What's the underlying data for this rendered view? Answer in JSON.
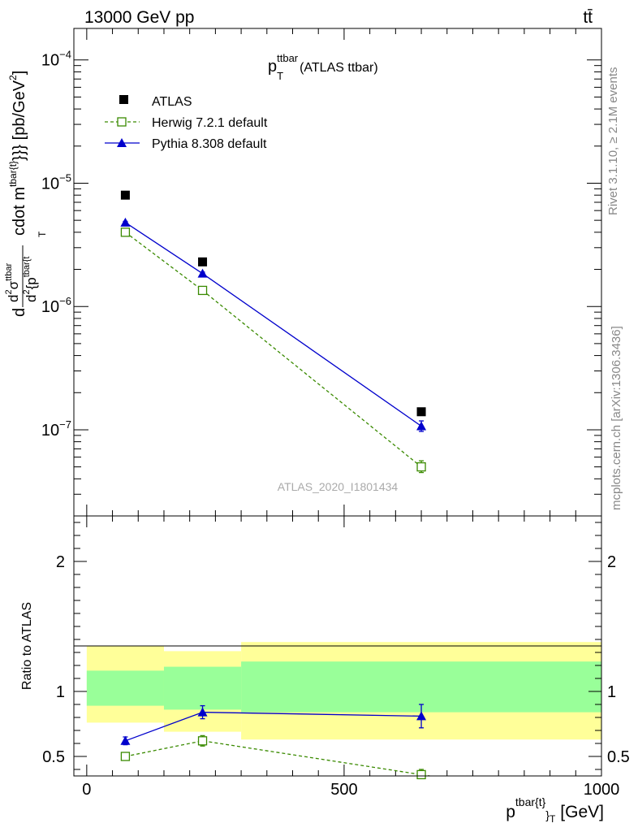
{
  "header": {
    "left_label": "13000 GeV pp",
    "right_label": "tt̄"
  },
  "side_labels": {
    "rivet": "Rivet 3.1.10, ≥ 2.1M events",
    "mcplots": "mcplots.cern.ch [arXiv:1306.3436]"
  },
  "chart_data": [
    {
      "type": "scatter",
      "title_main": "p",
      "title_sup": "ttbar",
      "title_sub": "T",
      "title_rest": "(ATLAS ttbar)",
      "watermark": "ATLAS_2020_I1801434",
      "ylabel": "d d²σ^ttbar/ d² {p_T^tbar{t}}} cdot m^tbar{t}}} [pb/GeV²]",
      "ylabel_parts": {
        "d": "d",
        "d2sigma": "d",
        "sup2": "2",
        "sigma": "σ",
        "sigma_sup": "ttbar",
        "den_d": "d",
        "den_sup": "2",
        "den_p": "{p",
        "den_sup2": "tbar{t",
        "den_sub": "T",
        "cdot": "cdot m",
        "m_sup": "tbar{t}",
        "tail": "}}} [pb/GeV",
        "tail_sup": "2",
        "tail_end": "]"
      },
      "yscale": "log",
      "ylim": [
        2e-08,
        0.00018
      ],
      "xlim": [
        -25,
        1000
      ],
      "y_ticks": [
        {
          "value": 1e-07,
          "base": "10",
          "exp": "−7"
        },
        {
          "value": 1e-06,
          "base": "10",
          "exp": "−6"
        },
        {
          "value": 1e-05,
          "base": "10",
          "exp": "−5"
        },
        {
          "value": 0.0001,
          "base": "10",
          "exp": "−4"
        }
      ],
      "legend_position": "top-left",
      "series": [
        {
          "name": "ATLAS",
          "marker": "filled-square",
          "color": "#000000",
          "x": [
            75,
            225,
            650
          ],
          "y": [
            8e-06,
            2.3e-06,
            1.4e-07
          ]
        },
        {
          "name": "Herwig 7.2.1 default",
          "marker": "open-square",
          "line": "dashed",
          "color": "#3a8a00",
          "x": [
            75,
            225,
            650
          ],
          "y": [
            4e-06,
            1.35e-06,
            5e-08
          ],
          "err": [
            [
              4.1e-06,
              3.9e-06
            ],
            [
              1.39e-06,
              1.31e-06
            ],
            [
              5.6e-08,
              4.5e-08
            ]
          ]
        },
        {
          "name": "Pythia 8.308 default",
          "marker": "filled-triangle",
          "line": "solid",
          "color": "#0000cc",
          "x": [
            75,
            225,
            650
          ],
          "y": [
            4.8e-06,
            1.85e-06,
            1.07e-07
          ],
          "err": [
            [
              4.9e-06,
              4.7e-06
            ],
            [
              1.9e-06,
              1.8e-06
            ],
            [
              1.18e-07,
              9.7e-08
            ]
          ]
        }
      ]
    },
    {
      "type": "scatter",
      "ylabel": "Ratio to ATLAS",
      "xlabel_main": "p",
      "xlabel_sup": "tbar{t}",
      "xlabel_sub": "}",
      "xlabel_sub2": "T",
      "xlabel_unit": "[GeV]",
      "xlim": [
        -25,
        1000
      ],
      "ylim": [
        0.35,
        2.35
      ],
      "x_ticks": [
        {
          "value": 0,
          "label": "0"
        },
        {
          "value": 500,
          "label": "500"
        },
        {
          "value": 1000,
          "label": "1000"
        }
      ],
      "y_ticks": [
        {
          "value": 0.5,
          "label": "0.5"
        },
        {
          "value": 1,
          "label": "1"
        },
        {
          "value": 2,
          "label": "2"
        }
      ],
      "bands": [
        {
          "x": [
            0,
            150
          ],
          "yellow": [
            0.76,
            1.35
          ],
          "green": [
            0.89,
            1.16
          ]
        },
        {
          "x": [
            150,
            300
          ],
          "yellow": [
            0.69,
            1.31
          ],
          "green": [
            0.86,
            1.19
          ]
        },
        {
          "x": [
            300,
            1000
          ],
          "yellow": [
            0.63,
            1.38
          ],
          "green": [
            0.84,
            1.23
          ]
        }
      ],
      "band_colors": {
        "yellow": "#ffff99",
        "green": "#99ff99"
      },
      "series": [
        {
          "name": "Herwig 7.2.1 default",
          "color": "#3a8a00",
          "x": [
            75,
            225,
            650
          ],
          "y": [
            0.5,
            0.62,
            0.36
          ],
          "err": [
            [
              0.52,
              0.48
            ],
            [
              0.66,
              0.58
            ],
            [
              0.4,
              0.32
            ]
          ]
        },
        {
          "name": "Pythia 8.308 default",
          "color": "#0000cc",
          "x": [
            75,
            225,
            650
          ],
          "y": [
            0.62,
            0.84,
            0.81
          ],
          "err": [
            [
              0.65,
              0.59
            ],
            [
              0.89,
              0.79
            ],
            [
              0.9,
              0.72
            ]
          ]
        }
      ]
    }
  ]
}
